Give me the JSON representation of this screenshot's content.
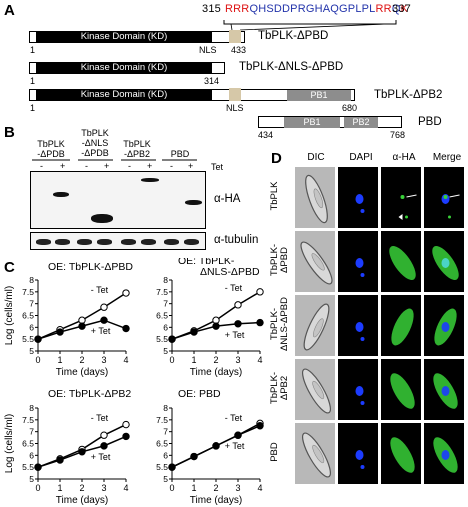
{
  "panel_labels": {
    "a": "A",
    "b": "B",
    "c": "C",
    "d": "D"
  },
  "panel_a": {
    "seq_start": "315",
    "seq_end": "337",
    "seq_red1": "RRR",
    "seq_blue1": "QHSDDPRGHAQGPLPL",
    "seq_red2": "RR",
    "seq_blue2": "Q",
    "seq_red3": "K",
    "kd_label": "Kinase Domain (KD)",
    "nls_label": "NLS",
    "pb1_label": "PB1",
    "pb2_label": "PB2",
    "constructs": [
      {
        "name": "TbPLK-ΔPBD",
        "start": "1",
        "end": "433"
      },
      {
        "name": "TbPLK-ΔNLS-ΔPBD",
        "start": "1",
        "end": "314"
      },
      {
        "name": "TbPLK-ΔPB2",
        "start": "1",
        "end": "680"
      },
      {
        "name": "PBD",
        "start": "434",
        "end": "768"
      }
    ]
  },
  "panel_b": {
    "groups": [
      "TbPLK\n-ΔPDB",
      "TbPLK\n-ΔNLS\n-ΔPDB",
      "TbPLK\n-ΔPB2",
      "PBD"
    ],
    "tet_label": "Tet",
    "minus": "-",
    "plus": "+",
    "blot1_label": "α-HA",
    "blot2_label": "α-tubulin"
  },
  "panel_c": {
    "ylabel": "Log (cells/ml)",
    "xlabel": "Time (days)",
    "minus_tet": "- Tet",
    "plus_tet": "+ Tet",
    "chart_data": [
      {
        "type": "line",
        "title": "OE:  TbPLK-ΔPBD",
        "x": [
          0,
          1,
          2,
          3,
          4
        ],
        "xlim": [
          0,
          4
        ],
        "ylim": [
          5,
          8
        ],
        "yticks": [
          "5",
          "5.5",
          "6",
          "6.5",
          "7",
          "7.5",
          "8"
        ],
        "xticks": [
          "0",
          "1",
          "2",
          "3",
          "4"
        ],
        "series": [
          {
            "name": "- Tet",
            "values": [
              5.5,
              5.9,
              6.3,
              6.85,
              7.45
            ]
          },
          {
            "name": "+ Tet",
            "values": [
              5.5,
              5.8,
              6.05,
              6.3,
              5.95
            ]
          }
        ]
      },
      {
        "type": "line",
        "title": "OE:  TbPLK-\nΔNLS-ΔPBD",
        "x": [
          0,
          1,
          2,
          3,
          4
        ],
        "xlim": [
          0,
          4
        ],
        "ylim": [
          5,
          8
        ],
        "yticks": [
          "5",
          "5.5",
          "6",
          "6.5",
          "7",
          "7.5",
          "8"
        ],
        "xticks": [
          "0",
          "1",
          "2",
          "3",
          "4"
        ],
        "series": [
          {
            "name": "- Tet",
            "values": [
              5.5,
              5.85,
              6.3,
              6.95,
              7.5
            ]
          },
          {
            "name": "+ Tet",
            "values": [
              5.5,
              5.8,
              6.05,
              6.15,
              6.2
            ]
          }
        ]
      },
      {
        "type": "line",
        "title": "OE:  TbPLK-ΔPB2",
        "x": [
          0,
          1,
          2,
          3,
          4
        ],
        "xlim": [
          0,
          4
        ],
        "ylim": [
          5,
          8
        ],
        "yticks": [
          "5",
          "5.5",
          "6",
          "6.5",
          "7",
          "7.5",
          "8"
        ],
        "xticks": [
          "0",
          "1",
          "2",
          "3",
          "4"
        ],
        "series": [
          {
            "name": "- Tet",
            "values": [
              5.5,
              5.85,
              6.25,
              6.85,
              7.3
            ]
          },
          {
            "name": "+ Tet",
            "values": [
              5.5,
              5.8,
              6.15,
              6.4,
              6.8
            ]
          }
        ]
      },
      {
        "type": "line",
        "title": "OE:  PBD",
        "x": [
          0,
          1,
          2,
          3,
          4
        ],
        "xlim": [
          0,
          4
        ],
        "ylim": [
          5,
          8
        ],
        "yticks": [
          "5",
          "5.5",
          "6",
          "6.5",
          "7",
          "7.5",
          "8"
        ],
        "xticks": [
          "0",
          "1",
          "2",
          "3",
          "4"
        ],
        "series": [
          {
            "name": "- Tet",
            "values": [
              5.5,
              5.95,
              6.4,
              6.85,
              7.35
            ]
          },
          {
            "name": "+ Tet",
            "values": [
              5.5,
              5.95,
              6.4,
              6.85,
              7.25
            ]
          }
        ]
      }
    ]
  },
  "panel_d": {
    "columns": [
      "DIC",
      "DAPI",
      "α-HA",
      "Merge"
    ],
    "rows": [
      "TbPLK",
      "TbPLK-\nΔPBD",
      "TbPLK-\nΔNLS-ΔPBD",
      "TbPLK-\nΔPB2",
      "PBD"
    ]
  },
  "colors": {
    "blue_seq": "#2233aa",
    "red_seq": "#d11111",
    "nls": "#d6c8a8",
    "pb": "#8d8d8d",
    "dapi": "#1c3cff",
    "ha": "#38d038"
  }
}
